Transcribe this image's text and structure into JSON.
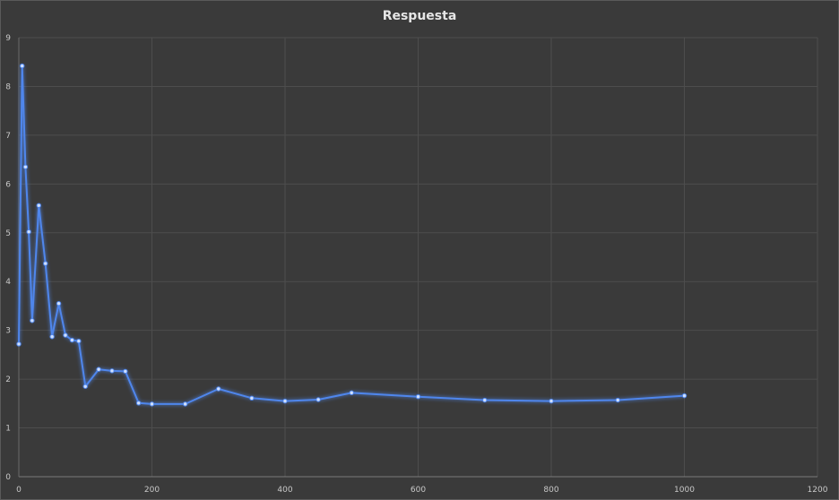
{
  "chart_data": {
    "type": "line",
    "title": "Respuesta",
    "xlabel": "",
    "ylabel": "",
    "xlim": [
      0,
      1200
    ],
    "ylim": [
      0,
      9
    ],
    "xticks": [
      0,
      200,
      400,
      600,
      800,
      1000,
      1200
    ],
    "yticks": [
      0,
      1,
      2,
      3,
      4,
      5,
      6,
      7,
      8,
      9
    ],
    "grid": true,
    "legend": "none",
    "series": [
      {
        "name": "Respuesta",
        "color": "#4f86ec",
        "x": [
          0,
          5,
          10,
          15,
          20,
          30,
          40,
          50,
          60,
          70,
          80,
          90,
          100,
          120,
          140,
          160,
          180,
          200,
          250,
          300,
          350,
          400,
          450,
          500,
          600,
          700,
          800,
          900,
          1000
        ],
        "y": [
          2.72,
          8.42,
          6.35,
          5.02,
          3.2,
          5.56,
          4.37,
          2.87,
          3.55,
          2.9,
          2.8,
          2.78,
          1.85,
          2.2,
          2.17,
          2.16,
          1.51,
          1.49,
          1.49,
          1.8,
          1.61,
          1.55,
          1.58,
          1.72,
          1.64,
          1.57,
          1.55,
          1.57,
          1.66
        ]
      }
    ]
  }
}
